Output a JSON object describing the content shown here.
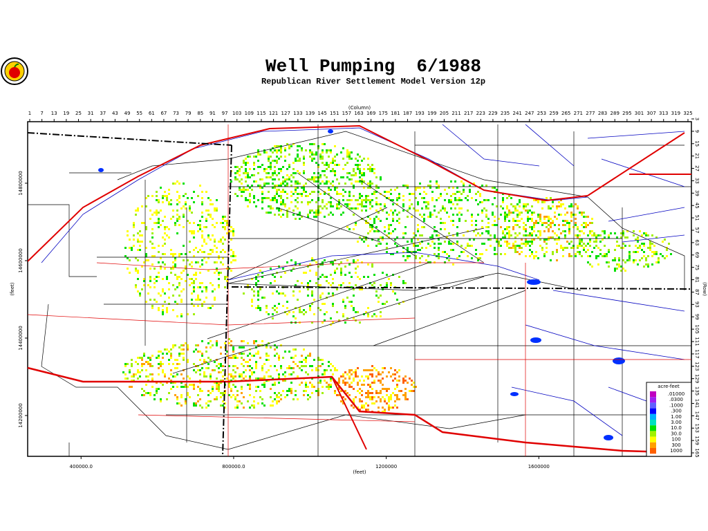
{
  "title": "Well Pumping  6/1988",
  "subtitle": "Republican River Settlement Model Version 12p",
  "map": {
    "column_axis": {
      "label": "(Column)",
      "ticks": [
        1,
        7,
        13,
        19,
        25,
        31,
        37,
        43,
        49,
        55,
        61,
        67,
        73,
        79,
        85,
        91,
        97,
        103,
        109,
        115,
        121,
        127,
        133,
        139,
        145,
        151,
        157,
        163,
        169,
        175,
        181,
        187,
        193,
        199,
        205,
        211,
        217,
        223,
        229,
        235,
        241,
        247,
        253,
        259,
        265,
        271,
        277,
        283,
        289,
        295,
        301,
        307,
        313,
        319,
        325
      ]
    },
    "row_axis": {
      "label": "(Row)",
      "ticks": [
        3,
        9,
        15,
        21,
        27,
        33,
        39,
        45,
        51,
        57,
        63,
        69,
        75,
        81,
        87,
        93,
        99,
        105,
        111,
        117,
        123,
        129,
        135,
        141,
        147,
        153,
        159,
        165
      ]
    },
    "x_axis": {
      "label": "(feet)",
      "xlim": [
        260000,
        2000000
      ],
      "xticks": [
        {
          "value": 400000,
          "label": "400000.0"
        },
        {
          "value": 800000,
          "label": "800000.0"
        },
        1200000,
        1600000
      ]
    },
    "y_axis": {
      "label": "(feet)",
      "ylim": [
        14094600,
        14958900
      ],
      "yticks": [
        14200000,
        14400000,
        14600000,
        14800000
      ]
    }
  },
  "legend": {
    "title": "acre-feet",
    "entries": [
      {
        "label": ".01000",
        "color": "#c000c0"
      },
      {
        "label": ".0300",
        "color": "#a020f0"
      },
      {
        "label": ".1000",
        "color": "#6060ff"
      },
      {
        "label": ".300",
        "color": "#0000ff"
      },
      {
        "label": "1.00",
        "color": "#00b0ff"
      },
      {
        "label": "3.00",
        "color": "#00e0c0"
      },
      {
        "label": "10.0",
        "color": "#00e000"
      },
      {
        "label": "30.0",
        "color": "#a0f000"
      },
      {
        "label": "100",
        "color": "#ffff00"
      },
      {
        "label": "300",
        "color": "#ffa000"
      },
      {
        "label": "1000",
        "color": "#ff6000"
      }
    ]
  }
}
